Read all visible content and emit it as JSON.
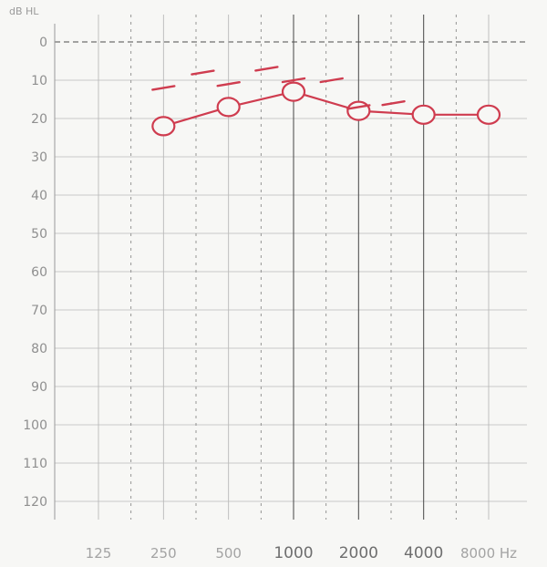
{
  "chart_data": {
    "type": "line",
    "title": "",
    "ylabel": "dB HL",
    "xlabel": "",
    "y_scale": "inverted",
    "ylim": [
      0,
      120
    ],
    "y_ticks": [
      0,
      10,
      20,
      30,
      40,
      50,
      60,
      70,
      80,
      90,
      100,
      110,
      120
    ],
    "y_tick_labels": [
      "0",
      "10",
      "20",
      "30",
      "40",
      "50",
      "60",
      "70",
      "80",
      "90",
      "100",
      "110",
      "120"
    ],
    "x_scale": "log2",
    "x_ticks": [
      125,
      250,
      500,
      1000,
      2000,
      4000,
      8000
    ],
    "x_tick_labels": [
      "125",
      "250",
      "500",
      "1000",
      "2000",
      "4000",
      "8000 Hz"
    ],
    "grid": true,
    "series": [
      {
        "marker": "circle",
        "connected": true,
        "color": "#cf3c4f",
        "x": [
          250,
          500,
          1000,
          2000,
          4000,
          8000
        ],
        "y": [
          22,
          17,
          13,
          18,
          19,
          19
        ]
      },
      {
        "marker": "dash",
        "connected": false,
        "color": "#cf3c4f",
        "x": [
          250,
          380,
          500,
          750,
          1000,
          1500,
          2000,
          2900
        ],
        "y": [
          12,
          8,
          11,
          7,
          10,
          10,
          17,
          16
        ]
      }
    ]
  }
}
